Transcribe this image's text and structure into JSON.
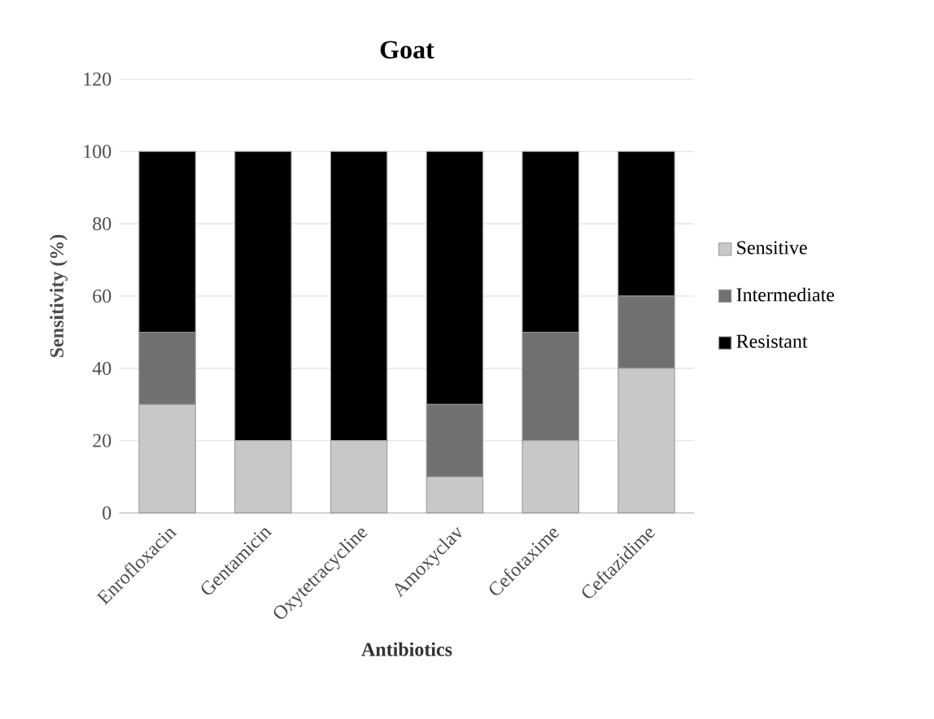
{
  "chart_data": {
    "type": "bar",
    "stacked": true,
    "title": "Goat",
    "xlabel": "Antibiotics",
    "ylabel": "Sensitivity (%)",
    "categories": [
      "Enrofloxacin",
      "Gentamicin",
      "Oxytetracycline",
      "Amoxyclav",
      "Cefotaxime",
      "Ceftazidime"
    ],
    "series": [
      {
        "name": "Sensitive",
        "color": "#c8c8c8",
        "values": [
          30,
          20,
          20,
          10,
          20,
          40
        ]
      },
      {
        "name": "Intermediate",
        "color": "#707070",
        "values": [
          20,
          0,
          0,
          20,
          30,
          20
        ]
      },
      {
        "name": "Resistant",
        "color": "#000000",
        "values": [
          50,
          80,
          80,
          70,
          50,
          40
        ]
      }
    ],
    "ylim": [
      0,
      120
    ],
    "yticks": [
      0,
      20,
      40,
      60,
      80,
      100,
      120
    ],
    "grid": "y",
    "legend": "right"
  }
}
